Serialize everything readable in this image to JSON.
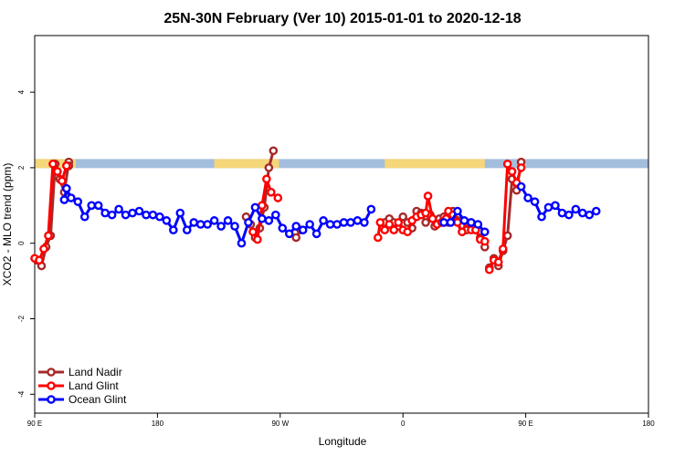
{
  "chart_data": {
    "type": "line",
    "title": "25N-30N February (Ver 10)   2015-01-01 to 2020-12-18",
    "xlabel": "Longitude",
    "ylabel": "XCO2 - MLO trend (ppm)",
    "xlim": [
      -90,
      180
    ],
    "ylim": [
      -4.5,
      5.5
    ],
    "x_ticks": [
      {
        "value": -90,
        "label": "90 E"
      },
      {
        "value": -36,
        "label": "180"
      },
      {
        "value": 18,
        "label": "90 W"
      },
      {
        "value": 72,
        "label": "0"
      },
      {
        "value": 126,
        "label": "90 E"
      },
      {
        "value": 180,
        "label": "180"
      }
    ],
    "y_ticks": [
      {
        "value": -4,
        "label": "-4"
      },
      {
        "value": -2,
        "label": "-2"
      },
      {
        "value": 0,
        "label": "0"
      },
      {
        "value": 2,
        "label": "2"
      },
      {
        "value": 4,
        "label": "4"
      }
    ],
    "grid": false,
    "legend_position": "bottom-left",
    "surface_band": {
      "y_range": [
        1.99,
        2.23
      ],
      "ocean_color": "#a3bedd",
      "land_color": "#f5d77a",
      "land_segments": [
        [
          -90,
          -72
        ],
        [
          -11,
          17.5
        ],
        [
          64,
          108
        ],
        [
          123,
          126
        ]
      ]
    },
    "series": [
      {
        "name": "Land Nadir",
        "color": "#a52a2a",
        "points": [
          [
            -89,
            -0.45
          ],
          [
            -87,
            -0.6
          ],
          [
            -85,
            -0.1
          ],
          [
            -83,
            0.2
          ],
          [
            -81,
            2.1
          ],
          [
            -79,
            1.7
          ],
          [
            -77,
            1.35
          ],
          [
            -75,
            2.15
          ],
          [
            -75,
            2.05
          ],
          null,
          [
            3,
            0.7
          ],
          [
            5,
            0.5
          ],
          [
            7,
            0.15
          ],
          [
            9,
            0.4
          ],
          [
            11,
            0.95
          ],
          [
            13,
            2.0
          ],
          [
            15,
            2.45
          ],
          null,
          [
            25,
            0.15
          ],
          [
            27,
            0.35
          ],
          null,
          [
            64,
            0.55
          ],
          [
            66,
            0.65
          ],
          [
            68,
            0.55
          ],
          [
            70,
            0.45
          ],
          [
            72,
            0.7
          ],
          [
            74,
            0.55
          ],
          [
            76,
            0.4
          ],
          [
            78,
            0.85
          ],
          [
            80,
            0.8
          ],
          [
            82,
            0.55
          ],
          [
            84,
            0.75
          ],
          [
            86,
            0.45
          ],
          [
            88,
            0.65
          ],
          [
            90,
            0.7
          ],
          [
            92,
            0.55
          ],
          [
            94,
            0.85
          ],
          [
            96,
            0.6
          ],
          [
            98,
            0.45
          ],
          [
            100,
            0.35
          ],
          [
            102,
            0.55
          ],
          [
            104,
            0.35
          ],
          [
            106,
            0.15
          ],
          [
            108,
            -0.1
          ],
          null,
          [
            110,
            -0.65
          ],
          [
            112,
            -0.4
          ],
          [
            114,
            -0.6
          ],
          [
            116,
            -0.2
          ],
          [
            118,
            0.2
          ],
          [
            120,
            1.7
          ],
          [
            122,
            1.4
          ],
          [
            124,
            2.15
          ]
        ]
      },
      {
        "name": "Land Glint",
        "color": "#ff0000",
        "points": [
          [
            -90,
            -0.4
          ],
          [
            -88,
            -0.45
          ],
          [
            -86,
            -0.15
          ],
          [
            -84,
            0.2
          ],
          [
            -82,
            2.1
          ],
          [
            -80,
            1.9
          ],
          [
            -78,
            1.65
          ],
          [
            -76,
            2.05
          ],
          null,
          [
            6,
            0.3
          ],
          [
            8,
            0.1
          ],
          [
            10,
            1.0
          ],
          [
            12,
            1.7
          ],
          [
            14,
            1.35
          ],
          [
            17,
            1.2
          ],
          null,
          [
            61,
            0.15
          ],
          [
            62,
            0.55
          ],
          [
            64,
            0.35
          ],
          [
            66,
            0.5
          ],
          [
            68,
            0.35
          ],
          [
            70,
            0.55
          ],
          [
            72,
            0.35
          ],
          [
            74,
            0.3
          ],
          [
            76,
            0.6
          ],
          [
            78,
            0.7
          ],
          [
            80,
            0.75
          ],
          [
            82,
            0.8
          ],
          [
            83,
            1.25
          ],
          [
            85,
            0.65
          ],
          [
            87,
            0.5
          ],
          [
            89,
            0.55
          ],
          [
            91,
            0.65
          ],
          [
            92,
            0.85
          ],
          [
            94,
            0.75
          ],
          [
            96,
            0.55
          ],
          [
            98,
            0.3
          ],
          [
            100,
            0.55
          ],
          [
            102,
            0.35
          ],
          [
            104,
            0.35
          ],
          [
            106,
            0.1
          ],
          [
            108,
            0.05
          ],
          null,
          [
            110,
            -0.7
          ],
          [
            112,
            -0.45
          ],
          [
            114,
            -0.5
          ],
          [
            116,
            -0.15
          ],
          [
            118,
            2.1
          ],
          [
            120,
            1.9
          ],
          [
            122,
            1.6
          ],
          [
            124,
            2.0
          ]
        ]
      },
      {
        "name": "Ocean Glint",
        "color": "#0000ff",
        "points": [
          [
            -77,
            1.15
          ],
          [
            -76,
            1.45
          ],
          [
            -74,
            1.2
          ],
          [
            -71,
            1.1
          ],
          [
            -68,
            0.7
          ],
          [
            -65,
            1.0
          ],
          [
            -62,
            1.0
          ],
          [
            -59,
            0.8
          ],
          [
            -56,
            0.75
          ],
          [
            -53,
            0.9
          ],
          [
            -50,
            0.75
          ],
          [
            -47,
            0.8
          ],
          [
            -44,
            0.85
          ],
          [
            -41,
            0.75
          ],
          [
            -38,
            0.75
          ],
          [
            -35,
            0.7
          ],
          [
            -32,
            0.6
          ],
          [
            -29,
            0.35
          ],
          [
            -26,
            0.8
          ],
          [
            -23,
            0.35
          ],
          [
            -20,
            0.55
          ],
          [
            -17,
            0.5
          ],
          [
            -14,
            0.5
          ],
          [
            -11,
            0.6
          ],
          [
            -8,
            0.45
          ],
          [
            -5,
            0.6
          ],
          [
            -2,
            0.45
          ],
          [
            1,
            0.0
          ],
          [
            4,
            0.55
          ],
          [
            7,
            0.95
          ],
          [
            10,
            0.65
          ],
          [
            13,
            0.6
          ],
          [
            16,
            0.75
          ],
          [
            19,
            0.4
          ],
          [
            22,
            0.25
          ],
          [
            25,
            0.45
          ],
          [
            28,
            0.35
          ],
          [
            31,
            0.5
          ],
          [
            34,
            0.25
          ],
          [
            37,
            0.6
          ],
          [
            40,
            0.5
          ],
          [
            43,
            0.5
          ],
          [
            46,
            0.55
          ],
          [
            49,
            0.55
          ],
          [
            52,
            0.6
          ],
          [
            55,
            0.55
          ],
          [
            58,
            0.9
          ],
          null,
          [
            90,
            0.55
          ],
          [
            93,
            0.55
          ],
          [
            96,
            0.85
          ],
          [
            99,
            0.6
          ],
          [
            102,
            0.55
          ],
          [
            105,
            0.5
          ],
          [
            108,
            0.3
          ],
          null,
          [
            124,
            1.5
          ],
          [
            127,
            1.2
          ],
          [
            130,
            1.1
          ],
          [
            133,
            0.7
          ],
          [
            136,
            0.95
          ],
          [
            139,
            1.0
          ],
          [
            142,
            0.8
          ],
          [
            145,
            0.75
          ],
          [
            148,
            0.9
          ],
          [
            151,
            0.8
          ],
          [
            154,
            0.75
          ],
          [
            157,
            0.85
          ]
        ]
      }
    ]
  }
}
